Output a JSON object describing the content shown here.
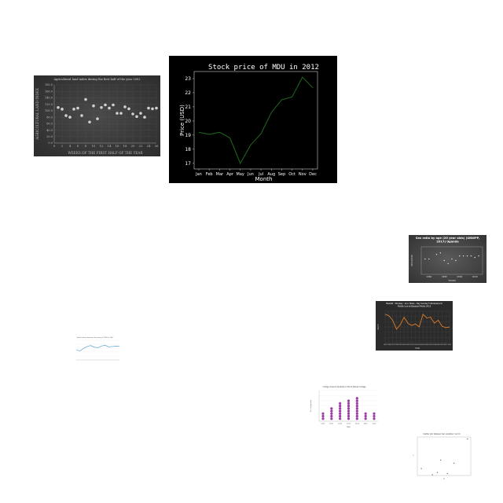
{
  "chart_data": [
    {
      "id": "agri",
      "type": "scatter",
      "title": "Agricultural land index during the first half of the year 2002",
      "xlabel": "WEEKS OF THE FIRST HALF OF THE YEAR",
      "ylabel": "AGRICULTURAL LAND INDEX",
      "xlim": [
        0,
        26
      ],
      "ylim": [
        0,
        180
      ],
      "xticks": [
        "0",
        "2",
        "4",
        "6",
        "8",
        "10",
        "12",
        "14",
        "16",
        "18",
        "20",
        "22",
        "24",
        "26"
      ],
      "yticks": [
        "0.0",
        "20.0",
        "40.0",
        "60.0",
        "80.0",
        "100.0",
        "120.0",
        "140.0",
        "160.0",
        "180.0"
      ],
      "x": [
        1,
        2,
        3,
        4,
        5,
        6,
        7,
        8,
        9,
        10,
        11,
        12,
        13,
        14,
        15,
        16,
        17,
        18,
        19,
        20,
        21,
        22,
        23,
        24,
        25,
        26
      ],
      "y": [
        110,
        105,
        85,
        80,
        105,
        108,
        85,
        135,
        65,
        115,
        75,
        110,
        118,
        108,
        118,
        92,
        92,
        112,
        106,
        90,
        82,
        92,
        80,
        108,
        106,
        108
      ],
      "point_color": "#d0d0d0"
    },
    {
      "id": "stock",
      "type": "line",
      "title": "Stock price of MDU in 2012",
      "xlabel": "Month",
      "ylabel": "Price (USD)",
      "categories": [
        "Jan",
        "Feb",
        "Mar",
        "Apr",
        "May",
        "Jun",
        "Jul",
        "Aug",
        "Sep",
        "Oct",
        "Nov",
        "Dec"
      ],
      "yticks": [
        "17",
        "18",
        "19",
        "20",
        "21",
        "22",
        "23"
      ],
      "ylim": [
        16.6,
        23.5
      ],
      "values": [
        19.2,
        19.05,
        19.2,
        18.8,
        17.0,
        18.3,
        19.1,
        20.6,
        21.5,
        21.7,
        23.1,
        22.35
      ],
      "line_color": "#1f6b1f"
    },
    {
      "id": "sex",
      "type": "scatter",
      "title": "Sex ratio by age (20 year olds) (UNWPP, 2017) Uganda",
      "xlabel": "YEARS",
      "ylabel": "SEX RATIO",
      "xlim": [
        1950,
        2030
      ],
      "ylim": [
        99.4,
        101.2
      ],
      "xticks": [
        "1960",
        "1980",
        "2000",
        "2020"
      ],
      "x": [
        1955,
        1960,
        1970,
        1975,
        1980,
        1985,
        1990,
        1995,
        2000,
        2005,
        2010,
        2015,
        2020,
        2025
      ],
      "y": [
        100.4,
        100.4,
        100.7,
        100.8,
        100.3,
        100.1,
        100.4,
        100.3,
        100.6,
        100.6,
        100.6,
        100.6,
        100.5,
        100.6
      ]
    },
    {
      "id": "hewitt",
      "type": "line",
      "title": "Hewlett - Woolsey - Acu, Texas - Day Sunday 5 Workplace to Middle Line at Baseball Media 2015",
      "xlabel": "YEAR",
      "ylabel": "VALUE",
      "x": [
        1995,
        1996,
        1997,
        1998,
        1999,
        2000,
        2001,
        2002,
        2003,
        2004,
        2005,
        2006,
        2007,
        2008,
        2009,
        2010,
        2011,
        2012
      ],
      "values": [
        78,
        76,
        70,
        58,
        64,
        74,
        66,
        63,
        65,
        61,
        78,
        73,
        74,
        66,
        70,
        62,
        60,
        61
      ],
      "ylim": [
        40,
        82
      ],
      "line_color": "#e07b28"
    },
    {
      "id": "blue",
      "type": "line",
      "title": "Stocks values between the years of 1990 to 2017",
      "xlabel": "",
      "ylabel": "",
      "values": [
        62,
        55,
        70,
        82,
        88,
        78,
        75,
        85,
        90,
        80,
        82,
        84,
        83
      ],
      "ylim": [
        0,
        120
      ],
      "line_color": "#5aa5d6"
    },
    {
      "id": "dots",
      "type": "scatter",
      "title": "College dropout students in Mount Rainier College",
      "xlabel": "Year",
      "ylabel": "No. of dropouts",
      "categories": [
        "2010",
        "2011",
        "2012",
        "2013",
        "2014",
        "2015",
        "2016"
      ],
      "values": [
        3,
        5,
        7,
        8,
        9,
        3,
        3
      ],
      "ylim": [
        0,
        12
      ],
      "point_color": "#9b3fa6"
    },
    {
      "id": "scatter",
      "type": "scatter",
      "title": "Scatter plot between two variables Y and X",
      "xlabel": "X",
      "ylabel": "Y",
      "x": [
        12,
        45,
        60,
        70,
        90,
        110,
        150
      ],
      "y": [
        18,
        2,
        8,
        40,
        5,
        32,
        95
      ],
      "xlim": [
        0,
        160
      ],
      "ylim": [
        0,
        100
      ],
      "point_color": "#444444"
    }
  ]
}
